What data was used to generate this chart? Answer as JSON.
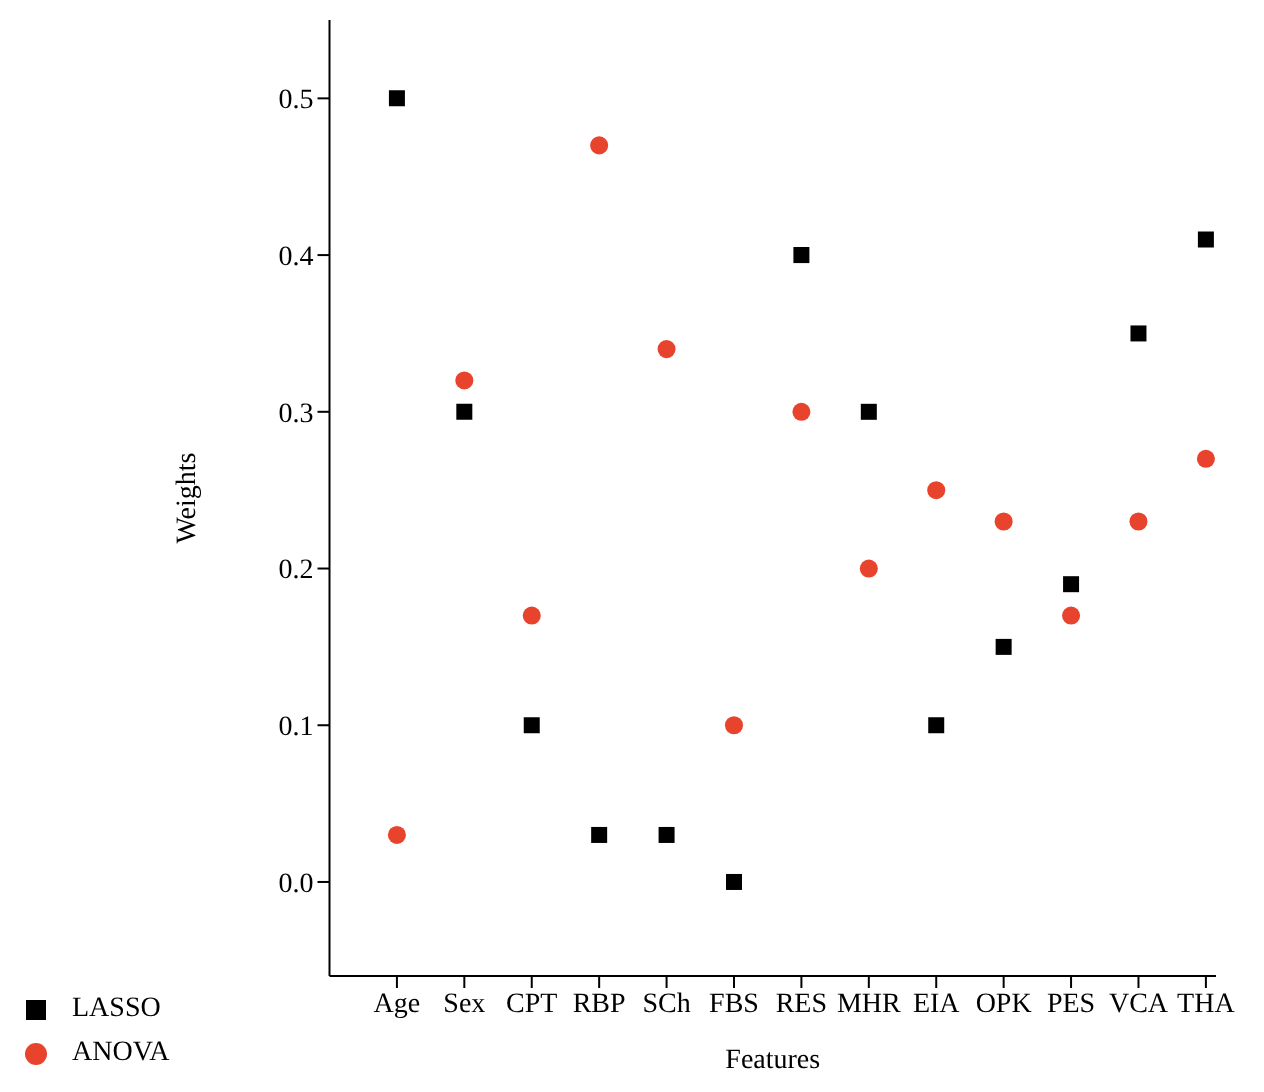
{
  "chart_data": {
    "type": "scatter",
    "xlabel": "Features",
    "ylabel": "Weights",
    "categories": [
      "Age",
      "Sex",
      "CPT",
      "RBP",
      "SCh",
      "FBS",
      "RES",
      "MHR",
      "EIA",
      "OPK",
      "PES",
      "VCA",
      "THA"
    ],
    "series": [
      {
        "name": "LASSO",
        "color": "#000000",
        "marker": "square",
        "values": [
          0.5,
          0.3,
          0.1,
          0.03,
          0.03,
          0.0,
          0.4,
          0.3,
          0.1,
          0.15,
          0.19,
          0.35,
          0.41
        ]
      },
      {
        "name": "ANOVA",
        "color": "#e8432c",
        "marker": "circle",
        "values": [
          0.03,
          0.32,
          0.17,
          0.47,
          0.34,
          0.1,
          0.3,
          0.2,
          0.25,
          0.23,
          0.17,
          0.23,
          0.27
        ]
      }
    ],
    "ylim": [
      -0.06,
      0.55
    ],
    "yticks": [
      {
        "value": 0,
        "label": "0.0"
      },
      0.1,
      0.2,
      0.3,
      0.4,
      0.5
    ],
    "grid": false,
    "legend": "bottom left"
  }
}
